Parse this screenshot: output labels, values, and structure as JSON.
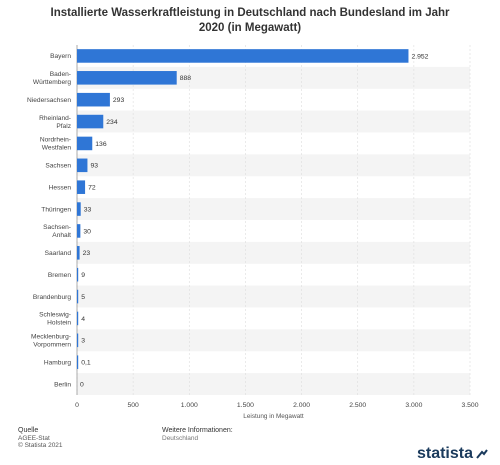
{
  "title": "Installierte Wasserkraftleistung in Deutschland nach Bundesland im Jahr 2020 (in Megawatt)",
  "chart_data": {
    "type": "bar",
    "orientation": "horizontal",
    "categories": [
      "Bayern",
      "Baden-\nWürttemberg",
      "Niedersachsen",
      "Rheinland-\nPfalz",
      "Nordrhein-\nWestfalen",
      "Sachsen",
      "Hessen",
      "Thüringen",
      "Sachsen-\nAnhalt",
      "Saarland",
      "Bremen",
      "Brandenburg",
      "Schleswig-\nHolstein",
      "Mecklenburg-\nVorpommern",
      "Hamburg",
      "Berlin"
    ],
    "values": [
      2952,
      888,
      293,
      234,
      136,
      93,
      72,
      33,
      30,
      23,
      9,
      5,
      4,
      3,
      0.1,
      0
    ],
    "data_labels": [
      "2.952",
      "888",
      "293",
      "234",
      "136",
      "93",
      "72",
      "33",
      "30",
      "23",
      "9",
      "5",
      "4",
      "3",
      "0,1",
      "0"
    ],
    "xlabel": "Leistung in Megawatt",
    "xlim": [
      0,
      3500
    ],
    "xticks": [
      0,
      500,
      1000,
      1500,
      2000,
      2500,
      3000,
      3500
    ],
    "xtick_labels": [
      "0",
      "500",
      "1.000",
      "1.500",
      "2.000",
      "2.500",
      "3.000",
      "3.500"
    ],
    "bar_color": "#2f76d6",
    "grid": true
  },
  "footer": {
    "source_heading": "Quelle",
    "source_lines": [
      "AGEE-Stat",
      "© Statista 2021"
    ],
    "info_heading": "Weitere Informationen:",
    "info_text": "Deutschland"
  },
  "logo": {
    "text": "statista",
    "color": "#1a3a5c"
  }
}
